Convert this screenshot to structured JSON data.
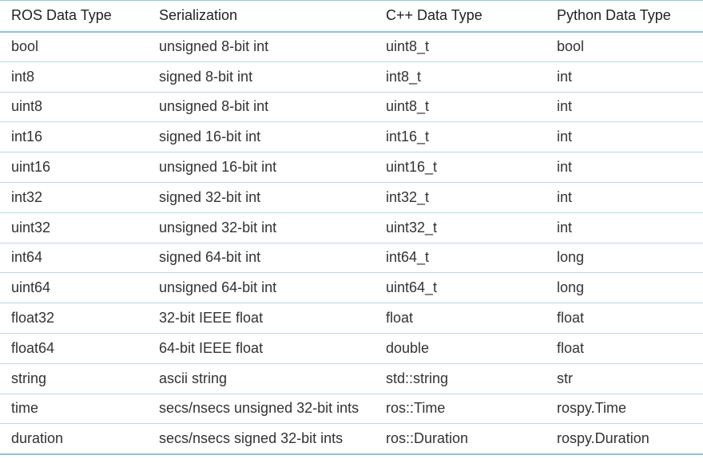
{
  "table": {
    "headers": [
      "ROS Data Type",
      "Serialization",
      "C++ Data Type",
      "Python Data Type"
    ],
    "rows": [
      [
        "bool",
        "unsigned 8-bit int",
        "uint8_t",
        "bool"
      ],
      [
        "int8",
        "signed 8-bit int",
        "int8_t",
        "int"
      ],
      [
        "uint8",
        "unsigned 8-bit int",
        "uint8_t",
        "int"
      ],
      [
        "int16",
        "signed 16-bit int",
        "int16_t",
        "int"
      ],
      [
        "uint16",
        "unsigned 16-bit int",
        "uint16_t",
        "int"
      ],
      [
        "int32",
        "signed 32-bit int",
        "int32_t",
        "int"
      ],
      [
        "uint32",
        "unsigned 32-bit int",
        "uint32_t",
        "int"
      ],
      [
        "int64",
        "signed 64-bit int",
        "int64_t",
        "long"
      ],
      [
        "uint64",
        "unsigned 64-bit int",
        "uint64_t",
        "long"
      ],
      [
        "float32",
        "32-bit IEEE float",
        "float",
        "float"
      ],
      [
        "float64",
        "64-bit IEEE float",
        "double",
        "float"
      ],
      [
        "string",
        "ascii string",
        "std::string",
        "str"
      ],
      [
        "time",
        "secs/nsecs unsigned 32-bit ints",
        "ros::Time",
        "rospy.Time"
      ],
      [
        "duration",
        "secs/nsecs signed 32-bit ints",
        "ros::Duration",
        "rospy.Duration"
      ]
    ]
  },
  "colors": {
    "border_strong": "#8cc6db",
    "border_light": "#b7dbe8",
    "text": "#333333"
  }
}
